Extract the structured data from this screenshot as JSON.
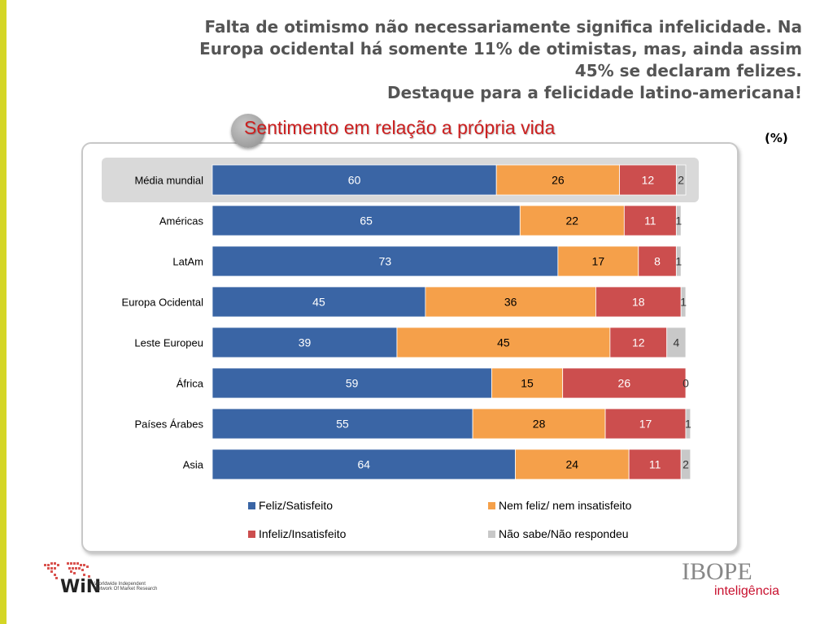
{
  "headline": {
    "line1": "Falta de otimismo não necessariamente significa infelicidade. Na",
    "line2": "Europa ocidental há somente 11% de otimistas, mas, ainda assim",
    "line3": "45% se declaram felizes.",
    "line4": "Destaque para a felicidade latino-americana!"
  },
  "unit_label": "(%)",
  "colors": {
    "feliz": "#3a65a5",
    "nem": "#f5a04a",
    "infeliz": "#cc4e4e",
    "nao_sabe": "#c8c8c8",
    "highlight_row": "#d9d9d9",
    "accent": "#d4d626"
  },
  "chart_data": {
    "type": "bar",
    "orientation": "horizontal",
    "stacked": true,
    "title": "Sentimento em relação a própria vida",
    "xlim": [
      0,
      100
    ],
    "grid": false,
    "legend_position": "bottom",
    "categories": [
      "Média mundial",
      "Américas",
      "LatAm",
      "Europa Ocidental",
      "Leste Europeu",
      "África",
      "Países Árabes",
      "Asia"
    ],
    "highlight_category": "Média mundial",
    "series": [
      {
        "name": "Feliz/Satisfeito",
        "values": [
          60,
          65,
          73,
          45,
          39,
          59,
          55,
          64
        ]
      },
      {
        "name": "Nem feliz/ nem insatisfeito",
        "values": [
          26,
          22,
          17,
          36,
          45,
          15,
          28,
          24
        ]
      },
      {
        "name": "Infeliz/Insatisfeito",
        "values": [
          12,
          11,
          8,
          18,
          12,
          26,
          17,
          11
        ]
      },
      {
        "name": "Não sabe/Não respondeu",
        "values": [
          2,
          1,
          1,
          1,
          4,
          0,
          1,
          2
        ]
      }
    ]
  },
  "footer": {
    "win_logo_text": "WiN",
    "win_tagline": "Worldwide Independent Network Of Market Research",
    "ibope_logo": "IBOPE",
    "ibope_sub": "inteligência"
  }
}
